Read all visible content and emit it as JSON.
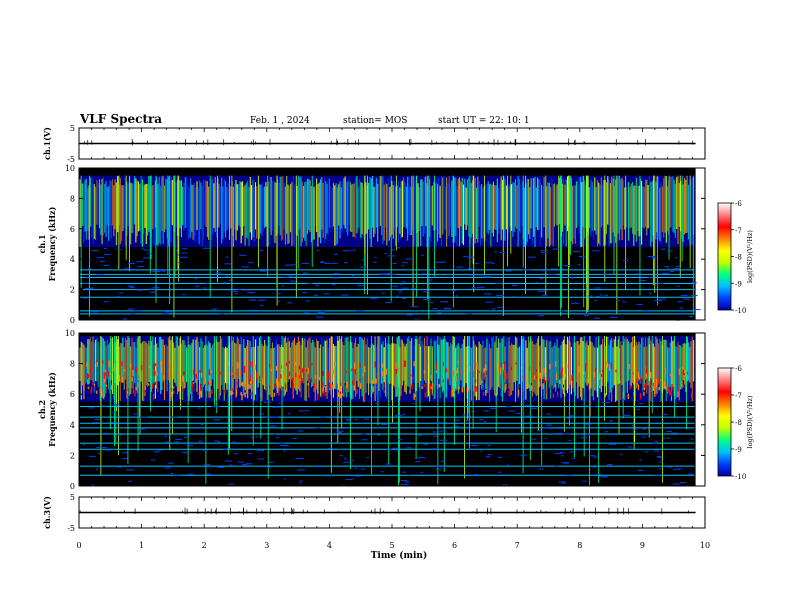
{
  "header": {
    "title": "VLF Spectra",
    "date": "Feb. 1 , 2024",
    "station": "station= MOS",
    "start": "start UT =  22: 10: 1"
  },
  "chart_data": [
    {
      "type": "line",
      "panel": "ch.1 waveform",
      "ylabel": "ch.1(V)",
      "ylim": [
        -5,
        5
      ],
      "yticks": [
        "5",
        "-5"
      ],
      "x": [
        0,
        9.85
      ],
      "series": [
        {
          "values": [
            0,
            0
          ]
        }
      ]
    },
    {
      "type": "heatmap",
      "panel": "ch.1 spectrogram",
      "ylabel": "ch.1\nFrequency (kHz)",
      "ylim": [
        0,
        10
      ],
      "yticks": [
        "0",
        "2",
        "4",
        "6",
        "8",
        "10"
      ],
      "xlim": [
        0,
        9.85
      ],
      "colorbar": {
        "label": "log(PSD)(V²/Hz)",
        "range": [
          -10,
          -6
        ],
        "ticks": [
          "-6",
          "-7",
          "-8",
          "-9",
          "-10"
        ]
      },
      "bands_kHz": [
        0.4,
        0.6,
        1.5,
        2.0,
        2.4,
        2.8,
        3.0,
        3.3
      ],
      "sferic_band_kHz": [
        4.8,
        9.5
      ]
    },
    {
      "type": "heatmap",
      "panel": "ch.2 spectrogram",
      "ylabel": "ch.2\nFrequency (kHz)",
      "ylim": [
        0,
        10
      ],
      "yticks": [
        "0",
        "2",
        "4",
        "6",
        "8",
        "10"
      ],
      "xlim": [
        0,
        9.85
      ],
      "colorbar": {
        "label": "log(PSD)(V²/Hz)",
        "range": [
          -10,
          -6
        ],
        "ticks": [
          "-6",
          "-7",
          "-8",
          "-9",
          "-10"
        ]
      },
      "bands_kHz": [
        0.7,
        1.3,
        2.4,
        2.8,
        3.4,
        3.8,
        4.1,
        4.5,
        5.2
      ],
      "sferic_band_kHz": [
        5.5,
        9.8
      ]
    },
    {
      "type": "line",
      "panel": "ch.3 waveform",
      "ylabel": "ch.3(V)",
      "ylim": [
        -5,
        5
      ],
      "yticks": [
        "5",
        "-5"
      ],
      "x": [
        0,
        9.85
      ],
      "series": [
        {
          "values": [
            0,
            0
          ]
        }
      ]
    }
  ],
  "xaxis": {
    "label": "Time (min)",
    "range": [
      0,
      10
    ],
    "ticks": [
      "0",
      "1",
      "2",
      "3",
      "4",
      "5",
      "6",
      "7",
      "8",
      "9",
      "10"
    ]
  },
  "colors": {
    "background": "#000000",
    "scale": [
      "#0000a0",
      "#0040ff",
      "#00c0ff",
      "#00ff80",
      "#c0ff00",
      "#ffff00",
      "#ff8000",
      "#ff0000",
      "#ff8080",
      "#ffffff"
    ]
  }
}
